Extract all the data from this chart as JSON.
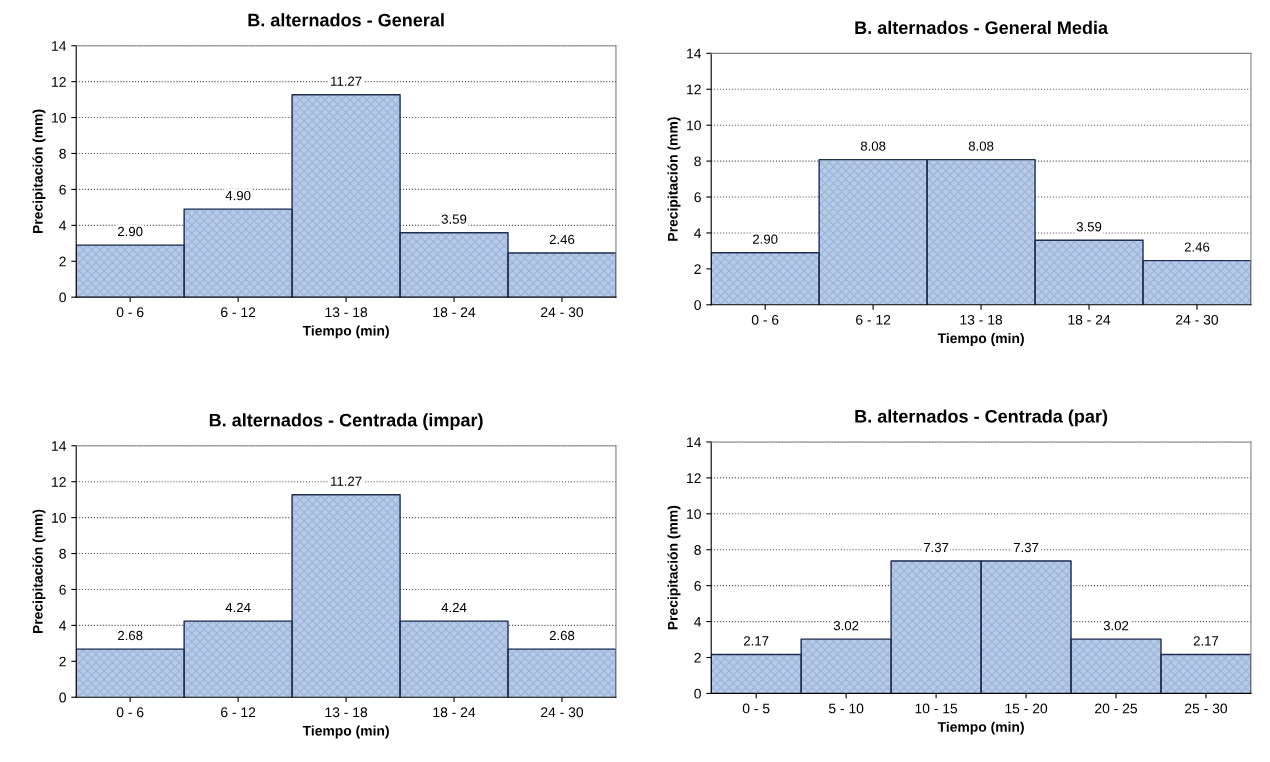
{
  "chart_data": [
    {
      "type": "bar",
      "title": "B. alternados - General",
      "xlabel": "Tiempo (min)",
      "ylabel": "Precipitación (mm)",
      "categories": [
        "0 - 6",
        "6 - 12",
        "13 - 18",
        "18 - 24",
        "24 - 30"
      ],
      "values": [
        2.9,
        4.9,
        11.27,
        3.59,
        2.46
      ],
      "value_labels": [
        "2.90",
        "4.90",
        "11.27",
        "3.59",
        "2.46"
      ],
      "color": "#b7cbe8",
      "ylim": [
        0,
        14
      ],
      "yticks": [
        0,
        2,
        4,
        6,
        8,
        10,
        12,
        14
      ],
      "grid": "y"
    },
    {
      "type": "bar",
      "title": "B. alternados - General Media",
      "xlabel": "Tiempo (min)",
      "ylabel": "Precipitación (mm)",
      "categories": [
        "0 - 6",
        "6 - 12",
        "13 - 18",
        "18 - 24",
        "24 - 30"
      ],
      "values": [
        2.9,
        8.08,
        8.08,
        3.59,
        2.46
      ],
      "value_labels": [
        "2.90",
        "8.08",
        "8.08",
        "3.59",
        "2.46"
      ],
      "color": "#b7cbe8",
      "ylim": [
        0,
        14
      ],
      "yticks": [
        0,
        2,
        4,
        6,
        8,
        10,
        12,
        14
      ],
      "grid": "y"
    },
    {
      "type": "bar",
      "title": "B. alternados - Centrada (impar)",
      "xlabel": "Tiempo (min)",
      "ylabel": "Precipitación (mm)",
      "categories": [
        "0 - 6",
        "6 - 12",
        "13 - 18",
        "18 - 24",
        "24 - 30"
      ],
      "values": [
        2.68,
        4.24,
        11.27,
        4.24,
        2.68
      ],
      "value_labels": [
        "2.68",
        "4.24",
        "11.27",
        "4.24",
        "2.68"
      ],
      "color": "#b7cbe8",
      "ylim": [
        0,
        14
      ],
      "yticks": [
        0,
        2,
        4,
        6,
        8,
        10,
        12,
        14
      ],
      "grid": "y"
    },
    {
      "type": "bar",
      "title": "B. alternados - Centrada (par)",
      "xlabel": "Tiempo (min)",
      "ylabel": "Precipitación (mm)",
      "categories": [
        "0 - 5",
        "5 - 10",
        "10 - 15",
        "15 - 20",
        "20 - 25",
        "25 - 30"
      ],
      "values": [
        2.17,
        3.02,
        7.37,
        7.37,
        3.02,
        2.17
      ],
      "value_labels": [
        "2.17",
        "3.02",
        "7.37",
        "7.37",
        "3.02",
        "2.17"
      ],
      "color": "#b7cbe8",
      "ylim": [
        0,
        14
      ],
      "yticks": [
        0,
        2,
        4,
        6,
        8,
        10,
        12,
        14
      ],
      "grid": "y"
    }
  ]
}
